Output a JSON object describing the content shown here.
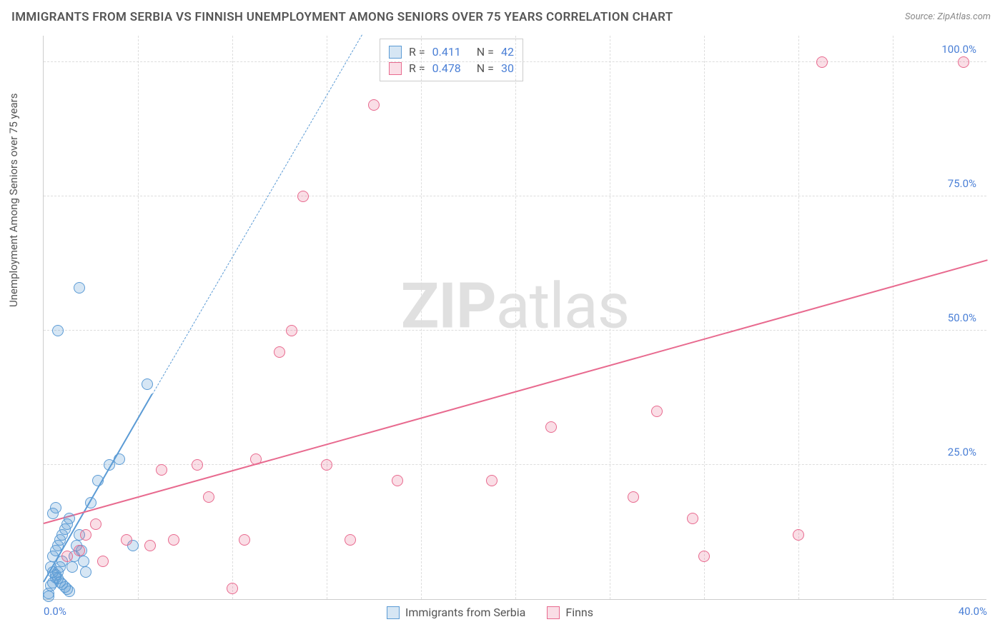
{
  "title": "IMMIGRANTS FROM SERBIA VS FINNISH UNEMPLOYMENT AMONG SENIORS OVER 75 YEARS CORRELATION CHART",
  "source": "Source: ZipAtlas.com",
  "y_axis_label": "Unemployment Among Seniors over 75 years",
  "watermark_bold": "ZIP",
  "watermark_light": "atlas",
  "chart": {
    "type": "scatter",
    "xlim": [
      0,
      40
    ],
    "ylim": [
      0,
      105
    ],
    "x_ticks": [
      0,
      40
    ],
    "x_tick_labels": [
      "0.0%",
      "40.0%"
    ],
    "y_ticks": [
      25,
      50,
      75,
      100
    ],
    "y_tick_labels": [
      "25.0%",
      "50.0%",
      "75.0%",
      "100.0%"
    ],
    "x_gridlines": [
      4,
      8,
      12,
      16,
      20,
      24,
      28,
      32,
      36
    ],
    "background_color": "#ffffff",
    "grid_color": "#dddddd",
    "axis_color": "#cccccc",
    "tick_label_color": "#4a7fd6",
    "marker_radius": 8,
    "marker_stroke_width": 1.5,
    "marker_fill_opacity": 0.25
  },
  "series": [
    {
      "name": "Immigrants from Serbia",
      "color": "#5b9bd5",
      "fill": "rgba(91,155,213,0.25)",
      "R": "0.411",
      "N": "42",
      "trend": {
        "x1": 0,
        "y1": 3,
        "x2": 4.6,
        "y2": 38,
        "solid_until_x": 4.6,
        "dashed_to_x": 13.5,
        "dashed_to_y": 105,
        "width": 2.5
      },
      "points": [
        [
          0.2,
          1
        ],
        [
          0.3,
          2.5
        ],
        [
          0.4,
          3
        ],
        [
          0.5,
          4
        ],
        [
          0.6,
          5
        ],
        [
          0.7,
          6
        ],
        [
          0.8,
          7
        ],
        [
          0.4,
          8
        ],
        [
          0.5,
          9
        ],
        [
          0.6,
          10
        ],
        [
          0.7,
          11
        ],
        [
          0.8,
          12
        ],
        [
          0.9,
          13
        ],
        [
          1.0,
          14
        ],
        [
          1.1,
          15
        ],
        [
          0.3,
          6
        ],
        [
          0.4,
          5
        ],
        [
          0.5,
          4.5
        ],
        [
          0.6,
          3.8
        ],
        [
          0.7,
          3.2
        ],
        [
          0.8,
          2.8
        ],
        [
          0.9,
          2.2
        ],
        [
          1.0,
          1.8
        ],
        [
          1.1,
          1.4
        ],
        [
          1.2,
          6
        ],
        [
          1.3,
          8
        ],
        [
          1.4,
          10
        ],
        [
          1.5,
          12
        ],
        [
          1.6,
          9
        ],
        [
          1.7,
          7
        ],
        [
          1.8,
          5
        ],
        [
          2.0,
          18
        ],
        [
          2.3,
          22
        ],
        [
          2.8,
          25
        ],
        [
          3.2,
          26
        ],
        [
          3.8,
          10
        ],
        [
          1.5,
          58
        ],
        [
          0.6,
          50
        ],
        [
          0.4,
          16
        ],
        [
          0.5,
          17
        ],
        [
          0.2,
          0.5
        ],
        [
          4.4,
          40
        ]
      ]
    },
    {
      "name": "Finns",
      "color": "#e86a8f",
      "fill": "rgba(232,106,143,0.22)",
      "R": "0.478",
      "N": "30",
      "trend": {
        "x1": 0,
        "y1": 14,
        "x2": 40,
        "y2": 63,
        "width": 2.5
      },
      "points": [
        [
          1.8,
          12
        ],
        [
          2.2,
          14
        ],
        [
          3.5,
          11
        ],
        [
          4.5,
          10
        ],
        [
          5.5,
          11
        ],
        [
          5.0,
          24
        ],
        [
          6.5,
          25
        ],
        [
          8.0,
          2
        ],
        [
          7.0,
          19
        ],
        [
          8.5,
          11
        ],
        [
          9.0,
          26
        ],
        [
          10.0,
          46
        ],
        [
          10.5,
          50
        ],
        [
          11.0,
          75
        ],
        [
          12.0,
          25
        ],
        [
          13.0,
          11
        ],
        [
          14.0,
          92
        ],
        [
          15.0,
          22
        ],
        [
          19.0,
          22
        ],
        [
          21.5,
          32
        ],
        [
          25.0,
          19
        ],
        [
          26.0,
          35
        ],
        [
          27.5,
          15
        ],
        [
          28.0,
          8
        ],
        [
          32.0,
          12
        ],
        [
          33.0,
          100
        ],
        [
          39.0,
          100
        ],
        [
          1.0,
          8
        ],
        [
          1.5,
          9
        ],
        [
          2.5,
          7
        ]
      ]
    }
  ],
  "stats_legend": {
    "R_label": "R  =",
    "N_label": "N  ="
  },
  "legend_series_labels": [
    "Immigrants from Serbia",
    "Finns"
  ]
}
